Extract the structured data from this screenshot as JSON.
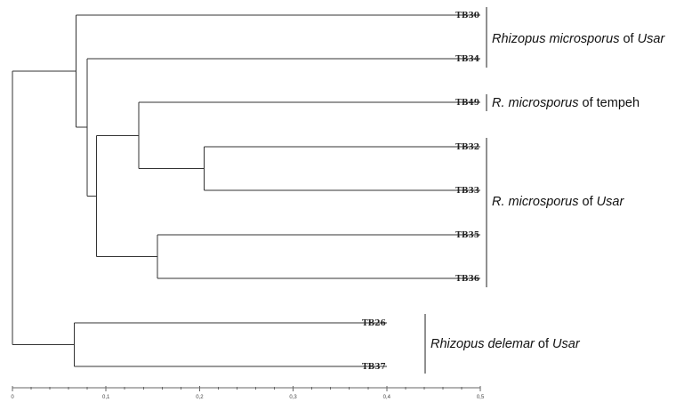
{
  "tree": {
    "leaves": [
      {
        "id": "TB30",
        "label": "TB30"
      },
      {
        "id": "TB34",
        "label": "TB34"
      },
      {
        "id": "TB49",
        "label": "TB49"
      },
      {
        "id": "TB32",
        "label": "TB32"
      },
      {
        "id": "TB33",
        "label": "TB33"
      },
      {
        "id": "TB35",
        "label": "TB35"
      },
      {
        "id": "TB36",
        "label": "TB36"
      },
      {
        "id": "TB26",
        "label": "TB26"
      },
      {
        "id": "TB37",
        "label": "TB37"
      }
    ],
    "leaf_distance": {
      "TB30": 0.5,
      "TB34": 0.5,
      "TB49": 0.5,
      "TB32": 0.5,
      "TB33": 0.5,
      "TB35": 0.5,
      "TB36": 0.5,
      "TB26": 0.4,
      "TB37": 0.4
    },
    "nodes": [
      {
        "id": "n32_33",
        "children": [
          "TB32",
          "TB33"
        ],
        "height": 0.205
      },
      {
        "id": "n35_36",
        "children": [
          "TB35",
          "TB36"
        ],
        "height": 0.155
      },
      {
        "id": "n49_3233",
        "children": [
          "TB49",
          "n32_33"
        ],
        "height": 0.135
      },
      {
        "id": "nInner",
        "children": [
          "n49_3233",
          "n35_36"
        ],
        "height": 0.09
      },
      {
        "id": "n34_inner",
        "children": [
          "TB34",
          "nInner"
        ],
        "height": 0.08
      },
      {
        "id": "n30",
        "children": [
          "TB30",
          "n34_inner"
        ],
        "height": 0.068
      },
      {
        "id": "n26_37",
        "children": [
          "TB26",
          "TB37"
        ],
        "height": 0.066
      },
      {
        "id": "root",
        "children": [
          "n30",
          "n26_37"
        ],
        "height": 0.0
      }
    ],
    "groups": [
      {
        "leaves": [
          "TB30",
          "TB34"
        ],
        "label_main": "Rhizopus microsporus",
        "label_suffix": " of Usar",
        "suffix_italic": "Usar",
        "text_main": "Rhizopus microsporus",
        "text_of": "of",
        "text_place": "Usar"
      },
      {
        "leaves": [
          "TB49"
        ],
        "text_main": "R. microsporus",
        "text_of": "of",
        "text_place": " tempeh"
      },
      {
        "leaves": [
          "TB32",
          "TB36"
        ],
        "text_main": "R. microsporus",
        "text_of": "of",
        "text_place": "Usar"
      },
      {
        "leaves": [
          "TB26",
          "TB37"
        ],
        "text_main": "Rhizopus delemar",
        "text_of": "of",
        "text_place": "Usar"
      }
    ]
  },
  "axis": {
    "min": 0,
    "max": 0.5,
    "ticks": [
      "0",
      "0,1",
      "0,2",
      "0,3",
      "0,4",
      "0,5"
    ],
    "tick_values": [
      0,
      0.1,
      0.2,
      0.3,
      0.4,
      0.5
    ],
    "minor_step": 0.02
  }
}
